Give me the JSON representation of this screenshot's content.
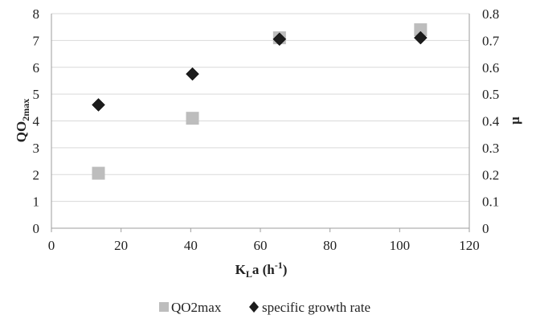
{
  "chart_data": {
    "type": "scatter",
    "x_axis": {
      "label_main": "K",
      "label_sub": "L",
      "label_rest": "a (h",
      "label_sup": "-1",
      "label_end": ")",
      "range": [
        0,
        120
      ],
      "ticks": [
        "0",
        "20",
        "40",
        "60",
        "80",
        "100",
        "120"
      ]
    },
    "y_axis_left": {
      "label_main": "QO",
      "label_sub": "2max",
      "range": [
        0,
        8
      ],
      "ticks": [
        "0",
        "1",
        "2",
        "3",
        "4",
        "5",
        "6",
        "7",
        "8"
      ]
    },
    "y_axis_right": {
      "label": "μ",
      "range": [
        0,
        0.8
      ],
      "ticks": [
        "0",
        "0.1",
        "0.2",
        "0.3",
        "0.4",
        "0.5",
        "0.6",
        "0.7",
        "0.8"
      ]
    },
    "grid": "horizontal",
    "legend_position": "bottom",
    "series": [
      {
        "name": "QO2max",
        "axis": "left",
        "marker": "square",
        "color": "#bdbdbd",
        "points": [
          {
            "x": 13.5,
            "y": 2.05
          },
          {
            "x": 40.5,
            "y": 4.1
          },
          {
            "x": 65.5,
            "y": 7.1
          },
          {
            "x": 106,
            "y": 7.4
          }
        ]
      },
      {
        "name": "specific growth rate",
        "axis": "right",
        "marker": "diamond",
        "color": "#1c1c1c",
        "points": [
          {
            "x": 13.5,
            "y": 0.46
          },
          {
            "x": 40.5,
            "y": 0.575
          },
          {
            "x": 65.5,
            "y": 0.705
          },
          {
            "x": 106,
            "y": 0.71
          }
        ]
      }
    ]
  }
}
